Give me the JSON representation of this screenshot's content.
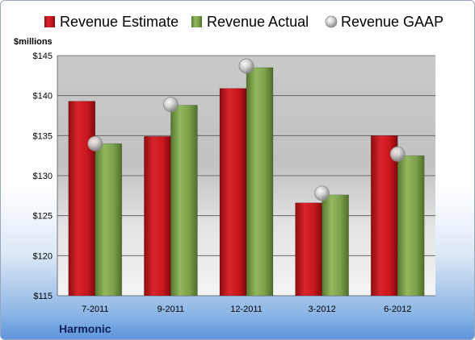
{
  "chart_data": {
    "type": "bar",
    "title": "",
    "ylabel": "$millions",
    "xlabel": "",
    "company": "Harmonic",
    "categories": [
      "7-2011",
      "9-2011",
      "12-2011",
      "3-2012",
      "6-2012"
    ],
    "ylim": [
      115,
      145
    ],
    "yticks": [
      "$115",
      "$120",
      "$125",
      "$130",
      "$135",
      "$140",
      "$145"
    ],
    "ytick_values": [
      115,
      120,
      125,
      130,
      135,
      140,
      145
    ],
    "grid": true,
    "legend_position": "top",
    "series": [
      {
        "name": "Revenue Estimate",
        "kind": "bar",
        "color": "#c8161d",
        "values": [
          139.3,
          134.9,
          140.9,
          126.6,
          135.0
        ]
      },
      {
        "name": "Revenue Actual",
        "kind": "bar",
        "color": "#7aa04a",
        "values": [
          134.0,
          138.8,
          143.5,
          127.6,
          132.5
        ]
      },
      {
        "name": "Revenue GAAP",
        "kind": "marker",
        "color": "#b8b8b8",
        "values": [
          134.0,
          138.9,
          143.7,
          127.8,
          132.7
        ]
      }
    ]
  }
}
